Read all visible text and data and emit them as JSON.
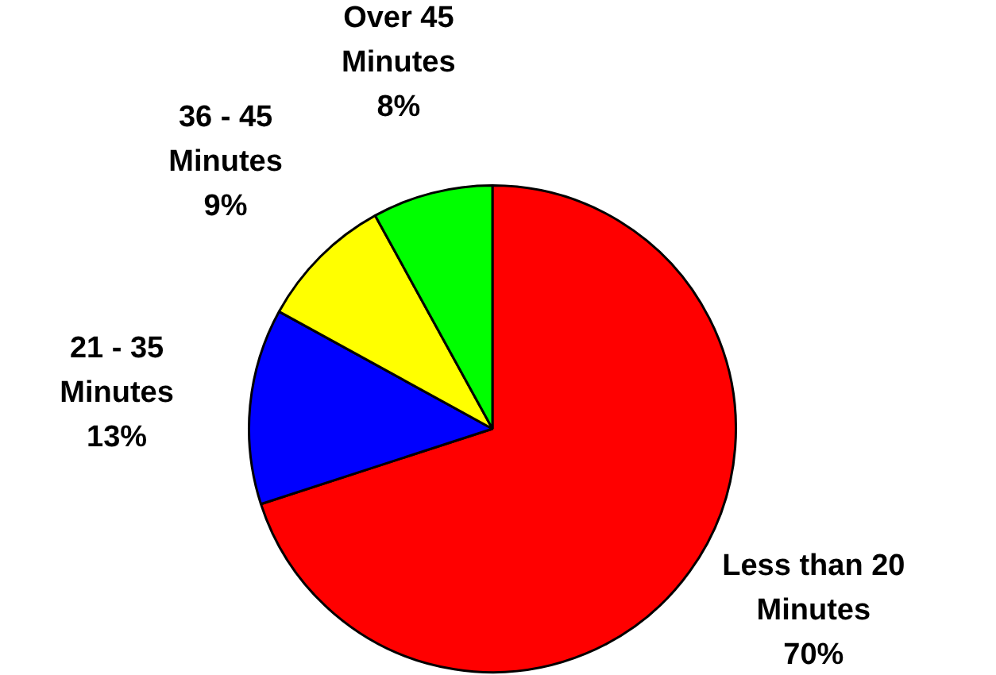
{
  "chart_data": {
    "type": "pie",
    "categories": [
      "Less than 20 Minutes",
      "21 - 35 Minutes",
      "36 - 45 Minutes",
      "Over 45 Minutes"
    ],
    "values": [
      70,
      13,
      9,
      8
    ],
    "colors": [
      "#ff0000",
      "#0000ff",
      "#ffff00",
      "#00ff00"
    ],
    "value_labels": [
      "70%",
      "13%",
      "9%",
      "8%"
    ]
  }
}
